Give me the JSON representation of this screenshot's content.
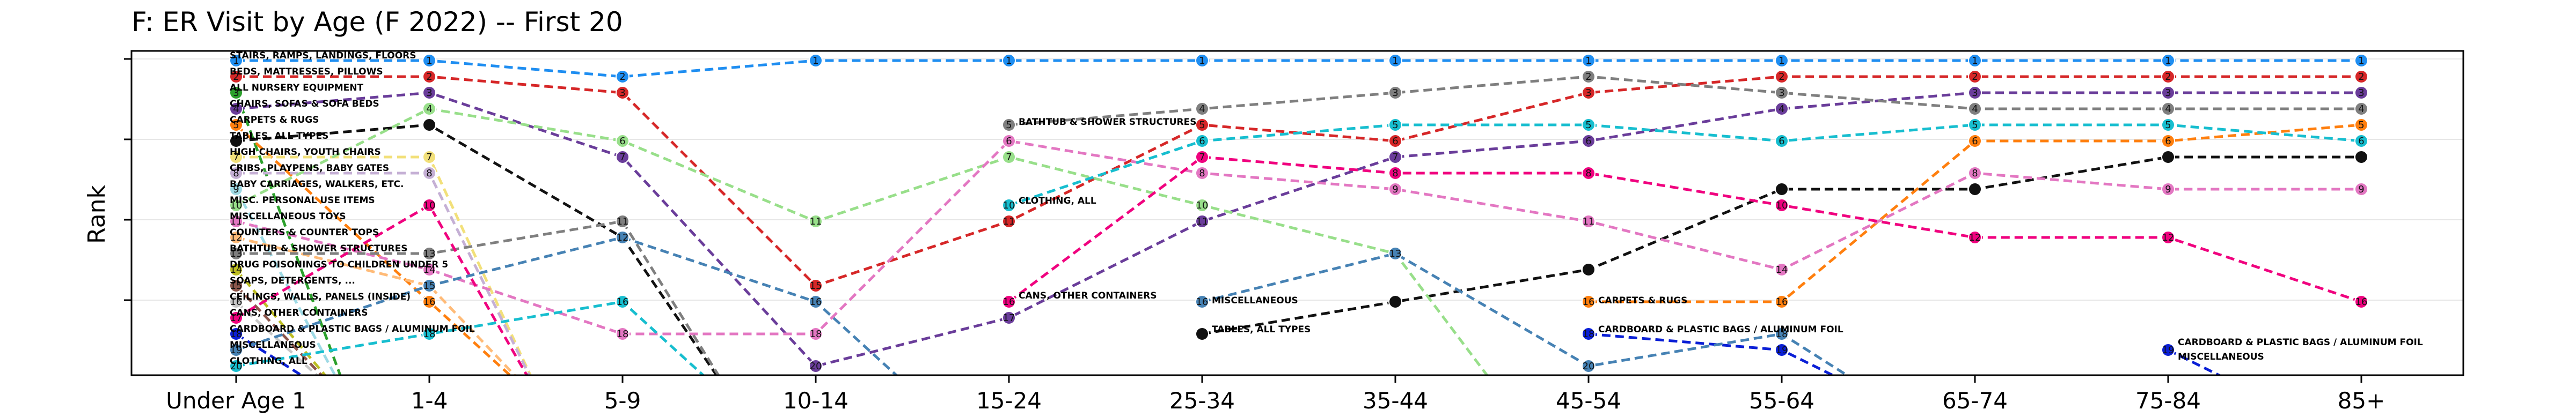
{
  "chart_data": {
    "type": "line",
    "title": "F: ER Visit by Age (F 2022) -- First 20",
    "xlabel": "",
    "ylabel": "Rank",
    "categories": [
      "Under Age 1",
      "1-4",
      "5-9",
      "10-14",
      "15-24",
      "25-34",
      "35-44",
      "45-54",
      "55-64",
      "65-74",
      "75-84",
      "85+"
    ],
    "ylim": [
      20,
      1
    ],
    "grid": "horizontal",
    "series": [
      {
        "name": "STAIRS, RAMPS, LANDINGS, FLOORS",
        "color": "#1f8ef1",
        "values": [
          1,
          1,
          2,
          1,
          1,
          1,
          1,
          1,
          1,
          1,
          1,
          1
        ]
      },
      {
        "name": "BEDS, MATTRESSES, PILLOWS",
        "color": "#d62728",
        "values": [
          2,
          2,
          3,
          15,
          11,
          5,
          6,
          3,
          2,
          2,
          2,
          2
        ]
      },
      {
        "name": "ALL NURSERY EQUIPMENT",
        "color": "#2ca02c",
        "values": [
          3,
          null,
          null,
          null,
          null,
          null,
          null,
          null,
          null,
          null,
          null,
          null
        ]
      },
      {
        "name": "CHAIRS, SOFAS & SOFA BEDS",
        "color": "#6a3d9a",
        "values": [
          4,
          3,
          7,
          20,
          17,
          11,
          7,
          6,
          4,
          3,
          3,
          3
        ]
      },
      {
        "name": "CARPETS & RUGS",
        "color": "#ff7f0e",
        "values": [
          5,
          16,
          null,
          null,
          null,
          null,
          null,
          16,
          16,
          6,
          6,
          5
        ]
      },
      {
        "name": "TABLES, ALL TYPES",
        "color": "#111111",
        "values": [
          6,
          5,
          12,
          null,
          null,
          18,
          16,
          14,
          9,
          9,
          7,
          7
        ]
      },
      {
        "name": "HIGH CHAIRS, YOUTH CHAIRS",
        "color": "#f2e07a",
        "values": [
          7,
          7,
          null,
          null,
          null,
          null,
          null,
          null,
          null,
          null,
          null,
          null
        ]
      },
      {
        "name": "CRIBS, PLAYPENS, BABY GATES",
        "color": "#c5b0d5",
        "values": [
          8,
          8,
          null,
          null,
          null,
          null,
          null,
          null,
          null,
          null,
          null,
          null
        ]
      },
      {
        "name": "BABY CARRIAGES, WALKERS, ETC.",
        "color": "#9edae5",
        "values": [
          9,
          null,
          null,
          null,
          null,
          null,
          null,
          null,
          null,
          null,
          null,
          null
        ]
      },
      {
        "name": "MISC. PERSONAL USE ITEMS",
        "color": "#98df8a",
        "values": [
          10,
          4,
          6,
          11,
          7,
          10,
          13,
          null,
          null,
          null,
          null,
          null
        ]
      },
      {
        "name": "MISCELLANEOUS TOYS",
        "color": "#e377c2",
        "values": [
          11,
          14,
          18,
          18,
          6,
          8,
          9,
          11,
          14,
          8,
          9,
          9
        ]
      },
      {
        "name": "COUNTERS & COUNTER TOPS",
        "color": "#ffbb78",
        "values": [
          12,
          15,
          null,
          null,
          null,
          null,
          null,
          null,
          null,
          null,
          null,
          null
        ]
      },
      {
        "name": "BATHTUB & SHOWER STRUCTURES",
        "color": "#7f7f7f",
        "values": [
          13,
          13,
          11,
          null,
          5,
          4,
          3,
          2,
          3,
          4,
          4,
          4
        ]
      },
      {
        "name": "DRUG POISONINGS TO CHILDREN UNDER 5",
        "color": "#bcbd22",
        "values": [
          14,
          null,
          null,
          null,
          null,
          null,
          null,
          null,
          null,
          null,
          null,
          null
        ]
      },
      {
        "name": "SOAPS, DETERGENTS, ...",
        "color": "#8c564b",
        "values": [
          15,
          null,
          null,
          null,
          null,
          null,
          null,
          null,
          null,
          null,
          null,
          null
        ]
      },
      {
        "name": "CEILINGS, WALLS, PANELS (INSIDE)",
        "color": "#c7c7c7",
        "values": [
          16,
          null,
          null,
          null,
          null,
          null,
          null,
          null,
          null,
          null,
          null,
          null
        ]
      },
      {
        "name": "CANS, OTHER CONTAINERS",
        "color": "#f0027f",
        "values": [
          17,
          10,
          null,
          null,
          16,
          7,
          8,
          8,
          10,
          12,
          12,
          16
        ]
      },
      {
        "name": "CARDBOARD & PLASTIC BAGS / ALUMINUM FOIL",
        "color": "#0a1fd6",
        "values": [
          18,
          null,
          null,
          null,
          null,
          null,
          null,
          18,
          19,
          null,
          19,
          null
        ]
      },
      {
        "name": "MISCELLANEOUS",
        "color": "#4682b4",
        "values": [
          19,
          15,
          12,
          16,
          null,
          16,
          13,
          20,
          18,
          null,
          null,
          null
        ]
      },
      {
        "name": "CLOTHING, ALL",
        "color": "#17becf",
        "values": [
          20,
          18,
          16,
          null,
          10,
          6,
          5,
          5,
          6,
          5,
          5,
          6
        ]
      }
    ],
    "end_labels": [
      {
        "text": "BATHTUB & SHOWER STRUCTURES",
        "x_index": 4,
        "rank": 4.8
      },
      {
        "text": "CLOTHING, ALL",
        "x_index": 4,
        "rank": 9.7
      },
      {
        "text": "CANS, OTHER CONTAINERS",
        "x_index": 4,
        "rank": 15.6
      },
      {
        "text": "MISCELLANEOUS",
        "x_index": 5,
        "rank": 15.9
      },
      {
        "text": "TABLES, ALL TYPES",
        "x_index": 5,
        "rank": 17.7
      },
      {
        "text": "CARPETS & RUGS",
        "x_index": 7,
        "rank": 15.9
      },
      {
        "text": "CARDBOARD & PLASTIC BAGS / ALUMINUM FOIL",
        "x_index": 7,
        "rank": 17.7
      },
      {
        "text": "CARDBOARD & PLASTIC BAGS / ALUMINUM FOIL",
        "x_index": 10,
        "rank": 18.5
      },
      {
        "text": "MISCELLANEOUS",
        "x_index": 10,
        "rank": 19.4
      }
    ]
  }
}
